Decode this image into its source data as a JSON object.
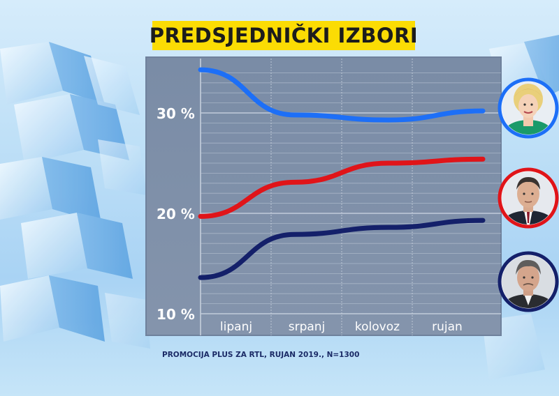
{
  "title": "PREDSJEDNIČKI IZBORI",
  "source": "PROMOCIJA PLUS ZA RTL, RUJAN 2019., N=1300",
  "colors": {
    "title_bg": "#fbdc04",
    "panel": "#7d8fa8",
    "series_blue": "#1d6ff7",
    "series_red": "#e01419",
    "series_navy": "#14206a"
  },
  "chart_data": {
    "type": "line",
    "title": "PREDSJEDNIČKI IZBORI",
    "x": [
      "lipanj",
      "srpanj",
      "kolovoz",
      "rujan"
    ],
    "y_ticks": [
      "30 %",
      "20 %",
      "10 %"
    ],
    "ylim": [
      10,
      35
    ],
    "grid": true,
    "series": [
      {
        "color": "#1d6ff7",
        "values": [
          34.3,
          29.8,
          29.3,
          30.2
        ],
        "photo": "Kolinda Grabar-Kitarović"
      },
      {
        "color": "#e01419",
        "values": [
          19.7,
          23.1,
          25.0,
          25.4
        ],
        "photo": "Zoran Milanović"
      },
      {
        "color": "#14206a",
        "values": [
          13.6,
          17.9,
          18.6,
          19.3
        ],
        "photo": "Miroslav Škoro"
      }
    ]
  }
}
